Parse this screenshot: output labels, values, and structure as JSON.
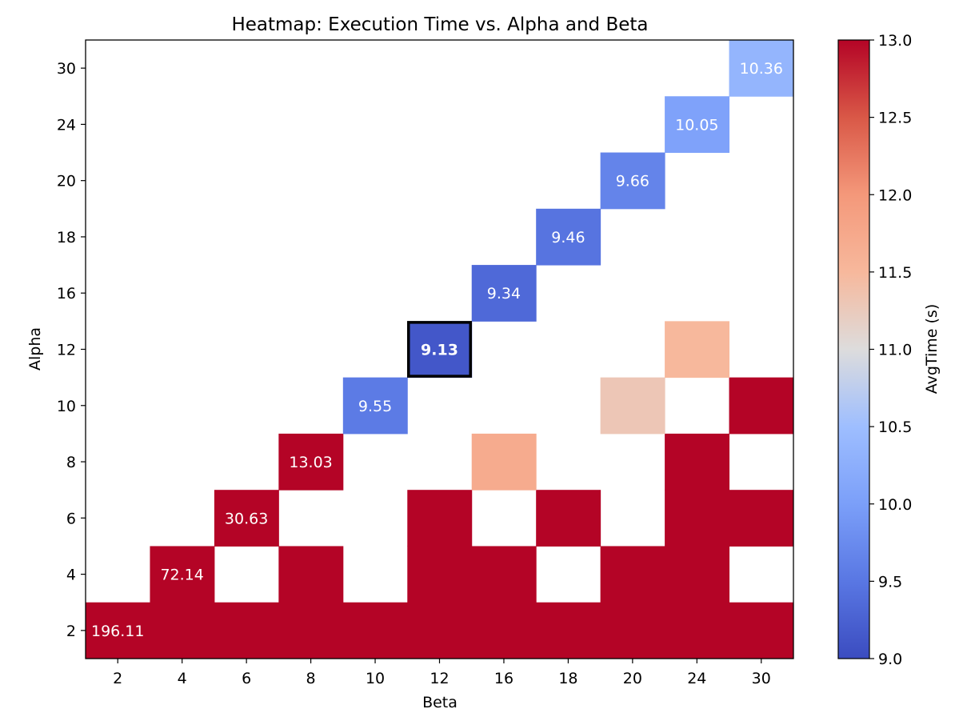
{
  "chart_data": {
    "type": "heatmap",
    "title": "Heatmap: Execution Time vs. Alpha and Beta",
    "xlabel": "Beta",
    "ylabel": "Alpha",
    "x_categories": [
      "2",
      "4",
      "6",
      "8",
      "10",
      "12",
      "16",
      "18",
      "20",
      "24",
      "30"
    ],
    "y_categories": [
      "2",
      "4",
      "6",
      "8",
      "10",
      "12",
      "16",
      "18",
      "20",
      "24",
      "30"
    ],
    "colormap": "coolwarm",
    "vmin": 9.0,
    "vmax": 13.0,
    "colorbar": {
      "label": "AvgTime (s)",
      "ticks": [
        "9.0",
        "9.5",
        "10.0",
        "10.5",
        "11.0",
        "11.5",
        "12.0",
        "12.5",
        "13.0"
      ],
      "placement": "right"
    },
    "highlight": {
      "beta": "12",
      "alpha": "12"
    },
    "cells": [
      {
        "beta": "2",
        "alpha": "2",
        "value": 196.11,
        "label": "196.11"
      },
      {
        "beta": "4",
        "alpha": "2",
        "value": 13.5
      },
      {
        "beta": "6",
        "alpha": "2",
        "value": 13.5
      },
      {
        "beta": "8",
        "alpha": "2",
        "value": 13.5
      },
      {
        "beta": "10",
        "alpha": "2",
        "value": 13.5
      },
      {
        "beta": "12",
        "alpha": "2",
        "value": 13.5
      },
      {
        "beta": "16",
        "alpha": "2",
        "value": 13.5
      },
      {
        "beta": "18",
        "alpha": "2",
        "value": 13.5
      },
      {
        "beta": "20",
        "alpha": "2",
        "value": 13.5
      },
      {
        "beta": "24",
        "alpha": "2",
        "value": 13.5
      },
      {
        "beta": "30",
        "alpha": "2",
        "value": 13.5
      },
      {
        "beta": "4",
        "alpha": "4",
        "value": 72.14,
        "label": "72.14"
      },
      {
        "beta": "8",
        "alpha": "4",
        "value": 13.5
      },
      {
        "beta": "12",
        "alpha": "4",
        "value": 13.5
      },
      {
        "beta": "16",
        "alpha": "4",
        "value": 13.5
      },
      {
        "beta": "20",
        "alpha": "4",
        "value": 13.5
      },
      {
        "beta": "24",
        "alpha": "4",
        "value": 13.5
      },
      {
        "beta": "6",
        "alpha": "6",
        "value": 30.63,
        "label": "30.63"
      },
      {
        "beta": "12",
        "alpha": "6",
        "value": 13.5
      },
      {
        "beta": "18",
        "alpha": "6",
        "value": 13.5
      },
      {
        "beta": "24",
        "alpha": "6",
        "value": 13.5
      },
      {
        "beta": "30",
        "alpha": "6",
        "value": 13.5
      },
      {
        "beta": "8",
        "alpha": "8",
        "value": 13.03,
        "label": "13.03"
      },
      {
        "beta": "16",
        "alpha": "8",
        "value": 11.7
      },
      {
        "beta": "24",
        "alpha": "8",
        "value": 13.5
      },
      {
        "beta": "10",
        "alpha": "10",
        "value": 9.55,
        "label": "9.55"
      },
      {
        "beta": "20",
        "alpha": "10",
        "value": 11.3
      },
      {
        "beta": "30",
        "alpha": "10",
        "value": 13.5
      },
      {
        "beta": "12",
        "alpha": "12",
        "value": 9.13,
        "label": "9.13"
      },
      {
        "beta": "24",
        "alpha": "12",
        "value": 11.5
      },
      {
        "beta": "16",
        "alpha": "16",
        "value": 9.34,
        "label": "9.34"
      },
      {
        "beta": "18",
        "alpha": "18",
        "value": 9.46,
        "label": "9.46"
      },
      {
        "beta": "20",
        "alpha": "20",
        "value": 9.66,
        "label": "9.66"
      },
      {
        "beta": "24",
        "alpha": "24",
        "value": 10.05,
        "label": "10.05"
      },
      {
        "beta": "30",
        "alpha": "30",
        "value": 10.36,
        "label": "10.36"
      }
    ]
  }
}
